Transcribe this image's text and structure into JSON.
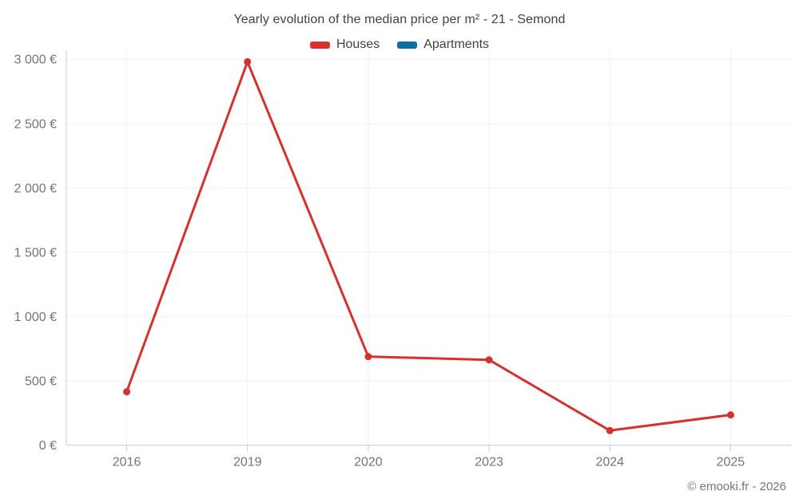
{
  "header": {
    "title": "Yearly evolution of the median price per m² - 21 - Semond"
  },
  "legend": {
    "items": [
      {
        "label": "Houses",
        "color": "#d7302f"
      },
      {
        "label": "Apartments",
        "color": "#0e6e9e"
      }
    ]
  },
  "footer": {
    "credit": "© emooki.fr - 2026"
  },
  "colors": {
    "grid": "#efefef",
    "axis": "#cccccc",
    "tick_label": "#757575",
    "title_text": "#424242",
    "houses_series": "#d7302f",
    "apartments_series": "#0e6e9e",
    "background": "#ffffff"
  },
  "chart_data": {
    "type": "line",
    "title": "Yearly evolution of the median price per m² - 21 - Semond",
    "xlabel": "",
    "ylabel": "",
    "categories": [
      "2016",
      "2019",
      "2020",
      "2023",
      "2024",
      "2025"
    ],
    "series": [
      {
        "name": "Houses",
        "color": "#d7302f",
        "values": [
          415,
          2980,
          688,
          663,
          113,
          235
        ]
      },
      {
        "name": "Apartments",
        "color": "#0e6e9e",
        "values": []
      }
    ],
    "ylim": [
      0,
      3000
    ],
    "y_ticks": [
      {
        "value": 0,
        "label": "0 €"
      },
      {
        "value": 500,
        "label": "500 €"
      },
      {
        "value": 1000,
        "label": "1 000 €"
      },
      {
        "value": 1500,
        "label": "1 500 €"
      },
      {
        "value": 2000,
        "label": "2 000 €"
      },
      {
        "value": 2500,
        "label": "2 500 €"
      },
      {
        "value": 3000,
        "label": "3 000 €"
      }
    ],
    "grid": true,
    "legend_position": "top",
    "currency": "€"
  }
}
